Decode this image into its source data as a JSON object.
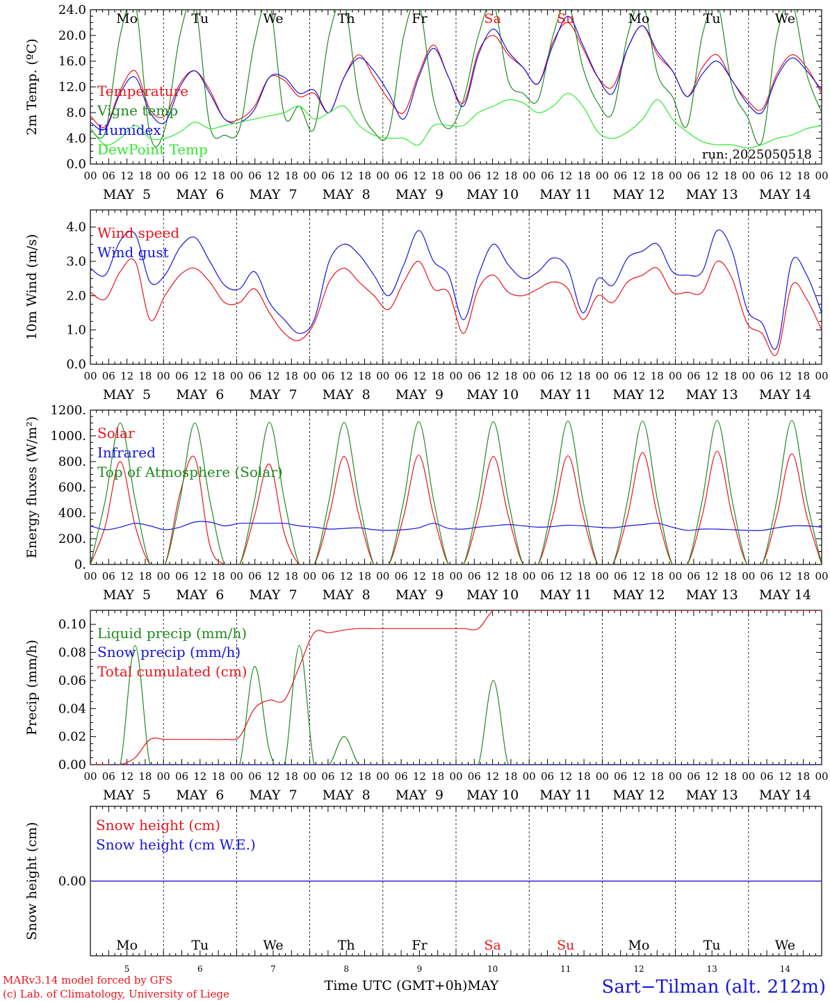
{
  "colors": {
    "red": "#e8141c",
    "green": "#1f8a1f",
    "blue": "#1414e0",
    "lightgreen": "#2ee82e",
    "black": "#000000"
  },
  "days": [
    "Mo",
    "Tu",
    "We",
    "Th",
    "Fr",
    "Sa",
    "Su",
    "Mo",
    "Tu",
    "We"
  ],
  "weekend_days": [
    "Sa",
    "Su"
  ],
  "date_labels": [
    "MAY  5",
    "MAY  6",
    "MAY  7",
    "MAY  8",
    "MAY  9",
    "MAY 10",
    "MAY 11",
    "MAY 12",
    "MAY 13",
    "MAY 14"
  ],
  "hour_labels": [
    "00",
    "06",
    "12",
    "18"
  ],
  "hour_end_label": "00",
  "bottom_day_numbers": [
    "5",
    "6",
    "7",
    "8",
    "9",
    "10",
    "11",
    "12",
    "13",
    "14"
  ],
  "footer": {
    "model": "MARv3.14 model forced by GFS",
    "lab": "(c) Lab. of Climatology, University of Liege",
    "axis_title": "Time UTC (GMT+0h)MAY",
    "station": "Sart−Tilman (alt. 212m)"
  },
  "chart_data": [
    {
      "type": "line",
      "ylabel": "2m Temp. (ºC)",
      "ylim": [
        0,
        24
      ],
      "yticks": [
        "0.0",
        "4.0",
        "8.0",
        "12.0",
        "16.0",
        "20.0",
        "24.0"
      ],
      "run_label": "run: 2025050518",
      "x_unit": "hours since 2025-05-05 00 UTC (6-hour steps)",
      "series": [
        {
          "name": "Temperature",
          "color": "red",
          "values": [
            7.5,
            5.8,
            11.5,
            14.5,
            8.5,
            7.5,
            12.5,
            14.5,
            11.5,
            7,
            7,
            9,
            13.5,
            13,
            10.5,
            11,
            8,
            13.5,
            17,
            13.5,
            10,
            8,
            14,
            18.5,
            13.5,
            9.5,
            17.5,
            20,
            17,
            15,
            12.5,
            19,
            22,
            18,
            13.5,
            12,
            18,
            21.5,
            17,
            14.5,
            10.5,
            15,
            17,
            13,
            10,
            8.5,
            14,
            17,
            15,
            11
          ]
        },
        {
          "name": "Vigne temp",
          "color": "green",
          "values": [
            5.5,
            5,
            20,
            25,
            4.5,
            5.5,
            20,
            25,
            6,
            4.5,
            5.5,
            19,
            25,
            7.5,
            9,
            5.5,
            20,
            25,
            10,
            5,
            5,
            20,
            25,
            10,
            5.5,
            10,
            20,
            25,
            13,
            11,
            10,
            20,
            25,
            15,
            9.5,
            8,
            20,
            25,
            14,
            10.5,
            6,
            20,
            25,
            12,
            7.5,
            3.5,
            20,
            25,
            14,
            8
          ]
        },
        {
          "name": "Humidex",
          "color": "blue",
          "values": [
            6.5,
            5.5,
            11,
            13.5,
            8,
            6.5,
            12,
            14.5,
            11,
            7,
            6.5,
            8.5,
            13.5,
            13.5,
            11,
            11.5,
            8,
            13.5,
            16.5,
            14.5,
            11,
            7,
            13.5,
            18,
            13.5,
            9,
            17,
            21,
            17.5,
            15,
            12.5,
            18.5,
            23,
            18.5,
            13.5,
            11,
            18,
            21.5,
            17.5,
            14.5,
            10.5,
            14,
            16,
            13,
            9.5,
            8,
            13.5,
            16.5,
            14.5,
            11.5
          ]
        },
        {
          "name": "DewPoint Temp",
          "color": "lightgreen",
          "values": [
            5.5,
            3,
            4,
            6,
            4,
            4,
            5,
            6.5,
            5.5,
            6,
            6.5,
            7,
            7.5,
            8,
            9,
            7,
            8,
            9,
            6,
            4.5,
            4,
            4,
            3,
            6,
            6,
            6,
            8,
            9,
            10,
            9.5,
            8,
            9,
            11,
            9,
            5,
            4,
            5,
            7,
            10,
            7,
            5,
            3.5,
            3,
            3,
            2.5,
            3,
            4,
            4.5,
            5.5,
            6
          ]
        }
      ]
    },
    {
      "type": "line",
      "ylabel": "10m Wind (m/s)",
      "ylim": [
        0,
        4.5
      ],
      "yticks": [
        "0.0",
        "1.0",
        "2.0",
        "3.0",
        "4.0"
      ],
      "x_unit": "hours since 2025-05-05 00 UTC (6-hour steps)",
      "series": [
        {
          "name": "Wind speed",
          "color": "red",
          "values": [
            2.1,
            1.9,
            2.7,
            3,
            1.3,
            2,
            2.6,
            2.8,
            2.4,
            1.8,
            1.8,
            2.2,
            1.5,
            0.9,
            0.7,
            1.2,
            2.4,
            2.8,
            2.4,
            2,
            1.6,
            2.4,
            3,
            2.2,
            2.1,
            0.9,
            2.2,
            2.6,
            2.1,
            2,
            2.2,
            2.4,
            2.2,
            1.3,
            2,
            1.8,
            2.4,
            2.6,
            2.8,
            2.1,
            2.1,
            2.1,
            3,
            2.5,
            1.2,
            0.9,
            0.3,
            2.3,
            1.9,
            1
          ]
        },
        {
          "name": "Wind gust",
          "color": "blue",
          "values": [
            2.8,
            2.6,
            3.6,
            3.8,
            2.4,
            2.6,
            3.4,
            3.7,
            3,
            2.3,
            2.2,
            2.7,
            1.8,
            1.3,
            0.9,
            1.3,
            3,
            3.5,
            3.2,
            2.6,
            2,
            2.9,
            3.9,
            3,
            2.6,
            1.3,
            2.6,
            3.5,
            2.9,
            2.5,
            2.7,
            3.1,
            2.8,
            1.5,
            2.5,
            2.3,
            3.1,
            3.3,
            3.5,
            2.7,
            2.6,
            2.7,
            3.9,
            3.3,
            1.6,
            1.2,
            0.5,
            3,
            2.6,
            1.5
          ]
        }
      ]
    },
    {
      "type": "line",
      "ylabel": "Energy fluxes (W/m²)",
      "ylim": [
        0,
        1200
      ],
      "yticks": [
        "0.",
        "200.",
        "400.",
        "600.",
        "800.",
        "1000.",
        "1200."
      ],
      "x_unit": "hours since 2025-05-05 00 UTC (6-hour steps)",
      "series": [
        {
          "name": "Solar",
          "color": "red",
          "values": [
            0,
            300,
            800,
            300,
            0,
            0,
            550,
            830,
            150,
            0,
            0,
            380,
            780,
            240,
            0,
            0,
            380,
            840,
            380,
            0,
            0,
            380,
            850,
            380,
            0,
            0,
            380,
            840,
            380,
            0,
            0,
            380,
            845,
            380,
            0,
            0,
            380,
            870,
            380,
            0,
            0,
            380,
            880,
            380,
            0,
            0,
            380,
            860,
            380,
            0
          ]
        },
        {
          "name": "Infrared",
          "color": "blue",
          "values": [
            300,
            270,
            290,
            320,
            300,
            270,
            290,
            330,
            330,
            300,
            320,
            320,
            320,
            320,
            300,
            290,
            275,
            280,
            285,
            270,
            265,
            270,
            285,
            320,
            280,
            275,
            290,
            300,
            310,
            300,
            290,
            295,
            305,
            300,
            290,
            285,
            300,
            310,
            320,
            290,
            265,
            275,
            275,
            270,
            265,
            265,
            285,
            300,
            300,
            290
          ]
        },
        {
          "name": "Top of Atmosphere (Solar)",
          "color": "green",
          "values": [
            0,
            500,
            1100,
            500,
            0,
            0,
            500,
            1100,
            500,
            0,
            0,
            500,
            1105,
            500,
            0,
            0,
            500,
            1105,
            500,
            0,
            0,
            500,
            1110,
            500,
            0,
            0,
            500,
            1110,
            500,
            0,
            0,
            500,
            1115,
            500,
            0,
            0,
            500,
            1115,
            500,
            0,
            0,
            500,
            1120,
            500,
            0,
            0,
            500,
            1120,
            500,
            0
          ]
        }
      ]
    },
    {
      "type": "line",
      "ylabel": "Precip (mm/h)",
      "ylim": [
        0,
        0.11
      ],
      "yticks": [
        "0.00",
        "0.02",
        "0.04",
        "0.06",
        "0.08",
        "0.10"
      ],
      "x_unit": "hours since 2025-05-05 00 UTC (6-hour steps)",
      "series": [
        {
          "name": "Liquid precip (mm/h)",
          "color": "green",
          "values": [
            0,
            0,
            0,
            0.085,
            0,
            0,
            0,
            0,
            0,
            0,
            0,
            0.07,
            0.01,
            0,
            0.085,
            0,
            0,
            0.02,
            0,
            0,
            0,
            0,
            0,
            0,
            0,
            0,
            0,
            0.06,
            0,
            0,
            0,
            0,
            0,
            0,
            0,
            0,
            0,
            0,
            0,
            0,
            0,
            0,
            0,
            0,
            0,
            0,
            0,
            0,
            0,
            0
          ]
        },
        {
          "name": "Snow precip (mm/h)",
          "color": "blue",
          "values": [
            0,
            0,
            0,
            0,
            0,
            0,
            0,
            0,
            0,
            0,
            0,
            0,
            0,
            0,
            0,
            0,
            0,
            0,
            0,
            0,
            0,
            0,
            0,
            0,
            0,
            0,
            0,
            0,
            0,
            0,
            0,
            0,
            0,
            0,
            0,
            0,
            0,
            0,
            0,
            0,
            0,
            0,
            0,
            0,
            0,
            0,
            0,
            0,
            0,
            0
          ]
        },
        {
          "name": "Total cumulated (cm)",
          "color": "red",
          "values": [
            0,
            0,
            0,
            0.005,
            0.018,
            0.018,
            0.018,
            0.018,
            0.018,
            0.018,
            0.02,
            0.04,
            0.046,
            0.046,
            0.07,
            0.094,
            0.094,
            0.096,
            0.097,
            0.097,
            0.097,
            0.097,
            0.097,
            0.097,
            0.097,
            0.097,
            0.097,
            0.11,
            0.11,
            0.11,
            0.11,
            0.11,
            0.11,
            0.11,
            0.11,
            0.11,
            0.11,
            0.11,
            0.11,
            0.11,
            0.11,
            0.11,
            0.11,
            0.11,
            0.11,
            0.11,
            0.11,
            0.11,
            0.11,
            0.11
          ]
        }
      ]
    },
    {
      "type": "line",
      "ylabel": "Snow height (cm)",
      "ylim": [
        -1,
        1
      ],
      "yticks": [
        "0.00"
      ],
      "x_unit": "hours since 2025-05-05 00 UTC (6-hour steps)",
      "series": [
        {
          "name": "Snow height (cm)",
          "color": "red",
          "values": [
            0,
            0,
            0,
            0,
            0,
            0,
            0,
            0,
            0,
            0,
            0,
            0,
            0,
            0,
            0,
            0,
            0,
            0,
            0,
            0,
            0,
            0,
            0,
            0,
            0,
            0,
            0,
            0,
            0,
            0,
            0,
            0,
            0,
            0,
            0,
            0,
            0,
            0,
            0,
            0,
            0,
            0,
            0,
            0,
            0,
            0,
            0,
            0,
            0,
            0
          ]
        },
        {
          "name": "Snow height (cm W.E.)",
          "color": "blue",
          "values": [
            0,
            0,
            0,
            0,
            0,
            0,
            0,
            0,
            0,
            0,
            0,
            0,
            0,
            0,
            0,
            0,
            0,
            0,
            0,
            0,
            0,
            0,
            0,
            0,
            0,
            0,
            0,
            0,
            0,
            0,
            0,
            0,
            0,
            0,
            0,
            0,
            0,
            0,
            0,
            0,
            0,
            0,
            0,
            0,
            0,
            0,
            0,
            0,
            0,
            0
          ]
        }
      ]
    }
  ]
}
